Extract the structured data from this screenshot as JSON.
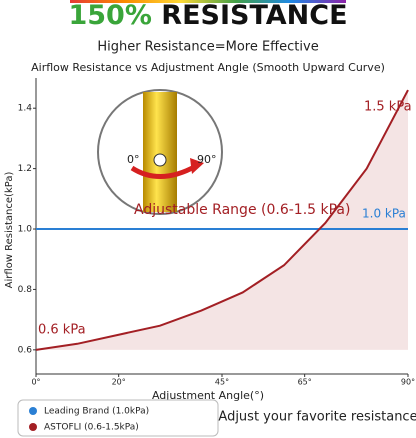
{
  "chart_data": {
    "type": "line",
    "title_number": "150%",
    "title": "RESISTANCE",
    "subtitle": "Higher Resistance=More Effective",
    "chart_title": "Airflow Resistance vs Adjustment Angle (Smooth Upward Curve)",
    "x_label": "Adjustment Angle(°)",
    "y_label": "Airflow Resistance(kPa)",
    "x": [
      0,
      10,
      20,
      30,
      40,
      50,
      60,
      70,
      80,
      90
    ],
    "series": [
      {
        "name": "Leading Brand (1.0kPa)",
        "color": "#2a7fd4",
        "x": [
          0,
          90
        ],
        "values": [
          1.0,
          1.0
        ]
      },
      {
        "name": "ASTOFLI (0.6-1.5kPa)",
        "color": "#a31f24",
        "x": [
          0,
          10,
          20,
          30,
          40,
          50,
          60,
          70,
          80,
          90
        ],
        "values": [
          0.6,
          0.62,
          0.65,
          0.68,
          0.73,
          0.79,
          0.88,
          1.02,
          1.2,
          1.46
        ]
      }
    ],
    "xlim": [
      0,
      90
    ],
    "ylim": [
      0.52,
      1.5
    ],
    "xticks": [
      {
        "value": 0,
        "label": "0°"
      },
      {
        "value": 20,
        "label": "20°"
      },
      {
        "value": 45,
        "label": "45°"
      },
      {
        "value": 65,
        "label": "65°"
      },
      {
        "value": 90,
        "label": "90°"
      }
    ],
    "yticks": [
      0.6,
      0.8,
      {
        "value": 1,
        "label": "1.0"
      },
      1.2,
      1.4
    ],
    "grid": false,
    "annotations": [
      "1.5 kPa",
      "1.0 kPa",
      "0.6 kPa",
      "Adjustable Range (0.6-1.5 kPa)"
    ],
    "inset_labels": [
      "0°",
      "90°"
    ],
    "footer": "Adjust your favorite resistance"
  }
}
